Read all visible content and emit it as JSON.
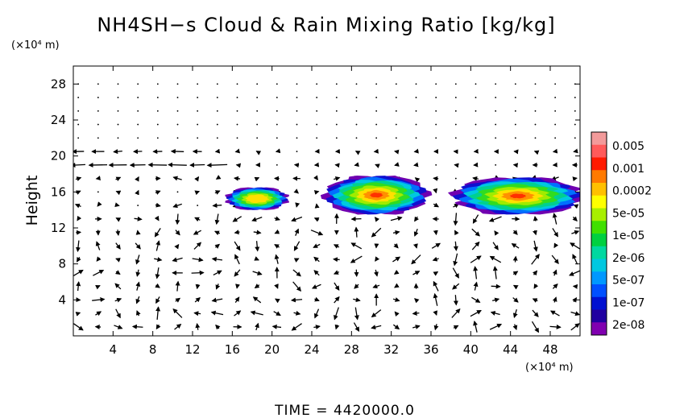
{
  "chart_data": {
    "type": "heatmap",
    "title": "NH4SH−s Cloud & Rain Mixing Ratio [kg/kg]",
    "ylabel": "Height",
    "x_unit": "(×10⁴ m)",
    "y_unit": "(×10⁴ m)",
    "xlim": [
      0,
      51
    ],
    "ylim": [
      0,
      30
    ],
    "x_ticks": [
      4,
      8,
      12,
      16,
      20,
      24,
      28,
      32,
      36,
      40,
      44,
      48
    ],
    "y_ticks": [
      4,
      8,
      12,
      16,
      20,
      24,
      28
    ],
    "colorbar": {
      "labels": [
        "0.005",
        "0.001",
        "0.0002",
        "5e-05",
        "1e-05",
        "2e-06",
        "5e-07",
        "1e-07",
        "2e-08"
      ],
      "colors": [
        "#f29a9a",
        "#ff5a5a",
        "#ff1a00",
        "#ff7a00",
        "#ffc000",
        "#ffff00",
        "#a8ef00",
        "#40e000",
        "#00d040",
        "#00d8a0",
        "#00c8e0",
        "#0098ff",
        "#0050ff",
        "#0010d0",
        "#2000a0",
        "#8000b0"
      ]
    },
    "cloud_regions": [
      {
        "x_start": 15.5,
        "x_end": 21.5,
        "y_bottom": 14.0,
        "y_top": 16.5
      },
      {
        "x_start": 25.5,
        "x_end": 35.5,
        "y_bottom": 13.5,
        "y_top": 17.8
      },
      {
        "x_start": 38.5,
        "x_end": 51,
        "y_bottom": 13.5,
        "y_top": 17.6
      }
    ],
    "wind_vectors": "shown as arrow field"
  },
  "footer": {
    "time_label": "TIME = 4420000.0"
  }
}
